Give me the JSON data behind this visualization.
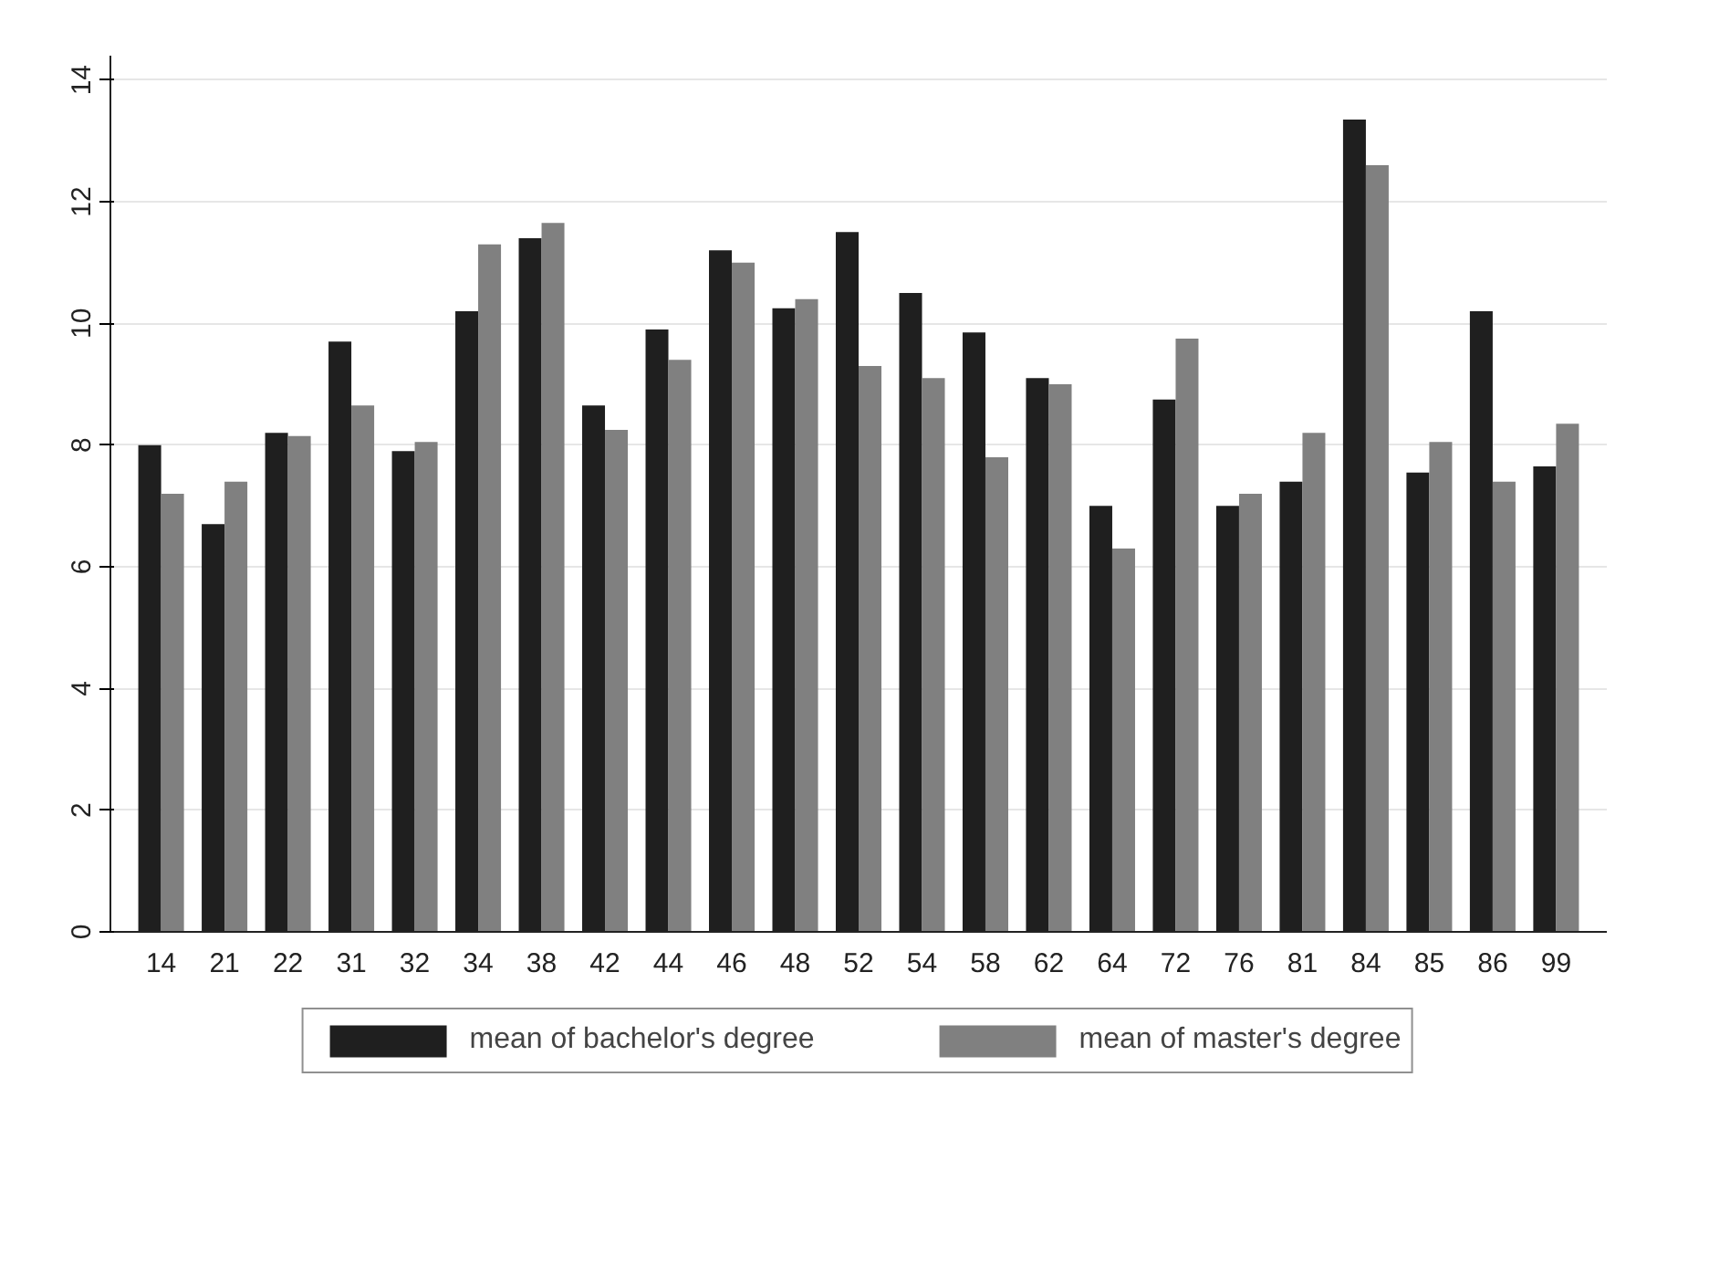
{
  "chart_data": {
    "type": "bar",
    "categories": [
      "14",
      "21",
      "22",
      "31",
      "32",
      "34",
      "38",
      "42",
      "44",
      "46",
      "48",
      "52",
      "54",
      "58",
      "62",
      "64",
      "72",
      "76",
      "81",
      "84",
      "85",
      "86",
      "99"
    ],
    "series": [
      {
        "name": "mean of bachelor's degree",
        "color": "#1f1f1f",
        "values": [
          8.0,
          6.7,
          8.2,
          9.7,
          7.9,
          10.2,
          11.4,
          8.65,
          9.9,
          11.2,
          10.25,
          11.5,
          10.5,
          9.85,
          9.1,
          7.0,
          8.75,
          7.0,
          7.4,
          13.35,
          7.55,
          10.2,
          7.65
        ]
      },
      {
        "name": "mean of master's degree",
        "color": "#808080",
        "values": [
          7.2,
          7.4,
          8.15,
          8.65,
          8.05,
          11.3,
          11.65,
          8.25,
          9.4,
          11.0,
          10.4,
          9.3,
          9.1,
          7.8,
          9.0,
          6.3,
          9.75,
          7.2,
          8.2,
          12.6,
          8.05,
          7.4,
          8.35
        ]
      }
    ],
    "ylim": [
      0,
      14.4
    ],
    "yticks": [
      0,
      2,
      4,
      6,
      8,
      10,
      12,
      14
    ],
    "grid": "y",
    "legend": "bottom"
  }
}
